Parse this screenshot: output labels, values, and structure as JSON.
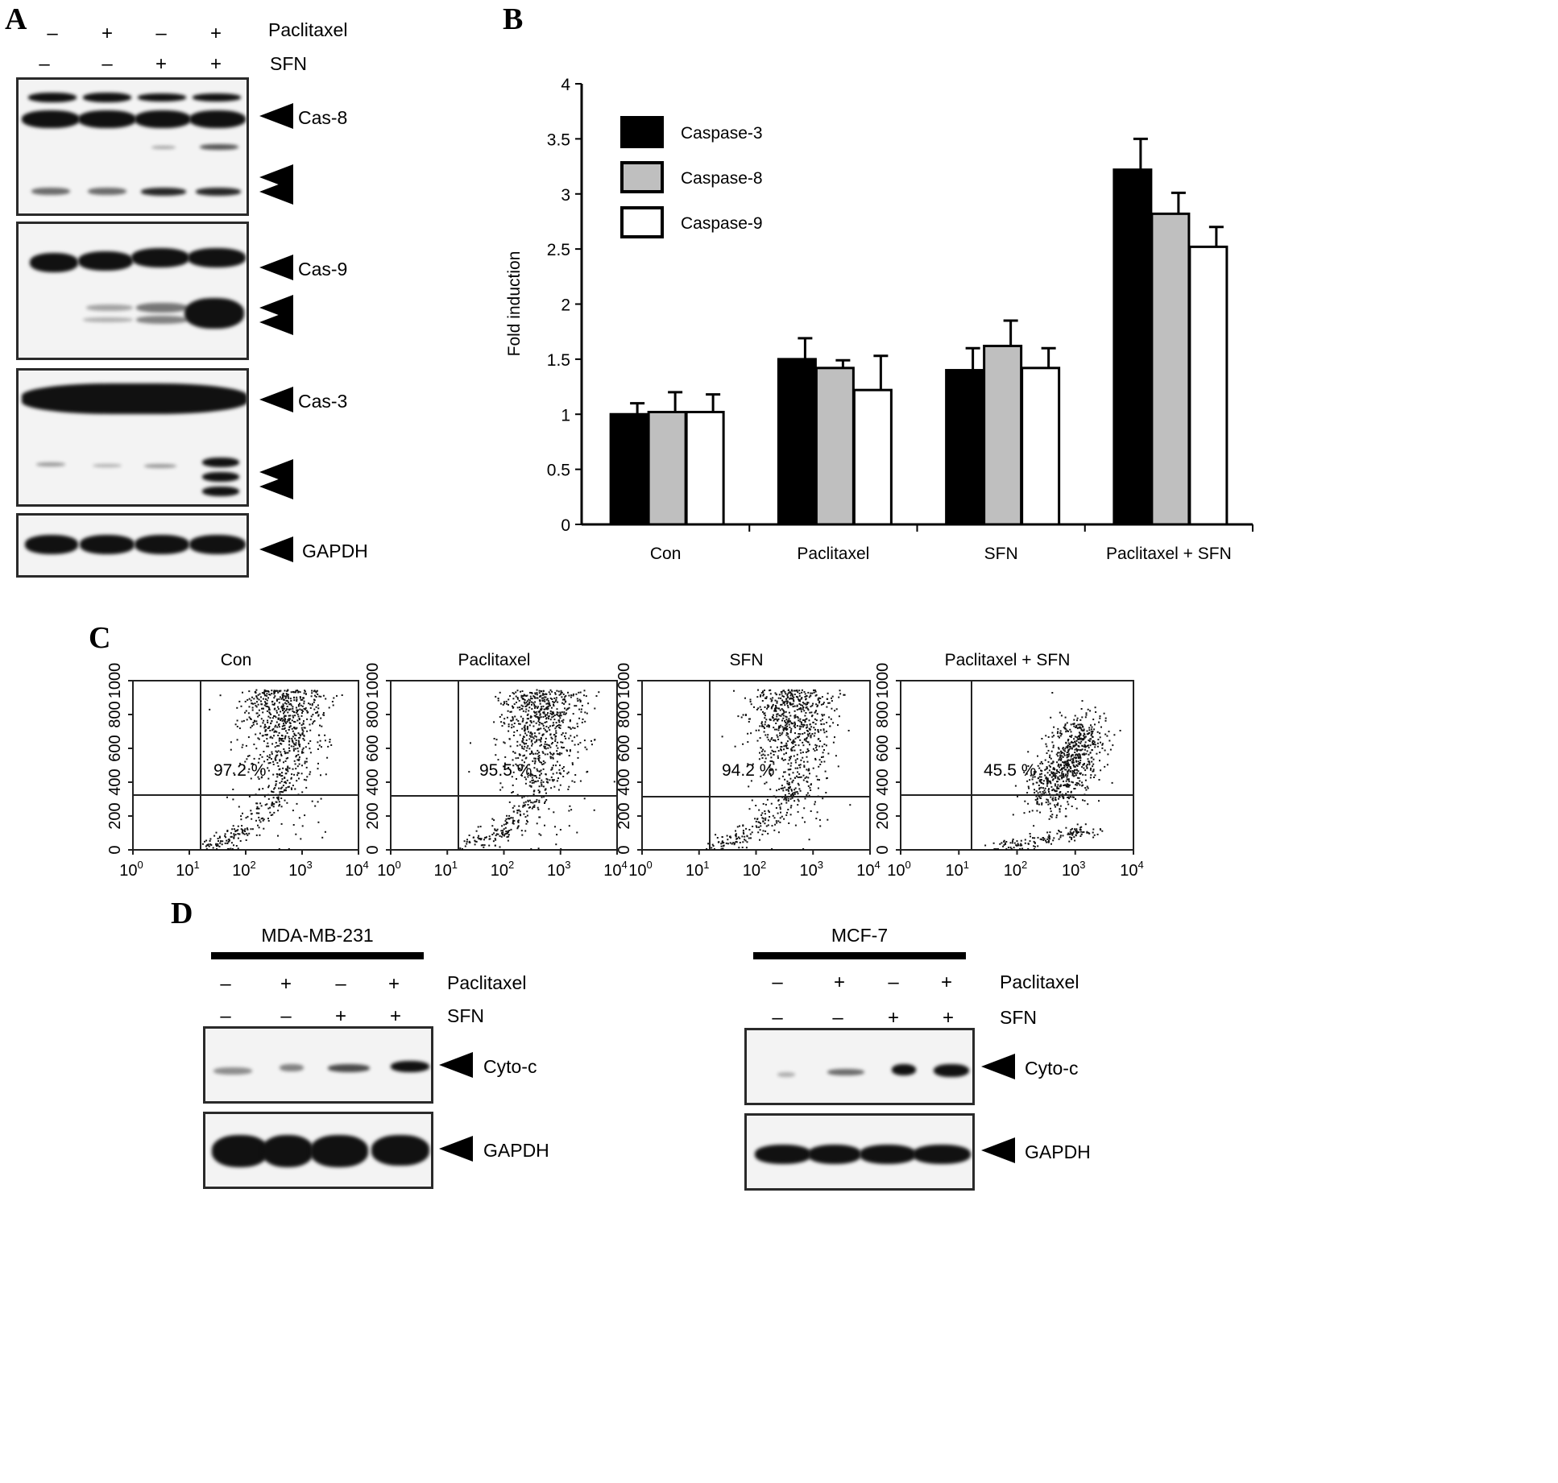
{
  "panel_a": {
    "letter": "A",
    "treatments": [
      {
        "label": "Paclitaxel",
        "signs": [
          "–",
          "+",
          "–",
          "+"
        ]
      },
      {
        "label": "SFN",
        "signs": [
          "–",
          "–",
          "+",
          "+"
        ]
      }
    ],
    "blots": [
      {
        "label": "Cas-8"
      },
      {
        "label": "Cas-9"
      },
      {
        "label": "Cas-3"
      },
      {
        "label": "GAPDH"
      }
    ]
  },
  "chart_data": {
    "type": "bar",
    "panel_letter": "B",
    "title": "",
    "xlabel": "",
    "ylabel": "Fold induction",
    "ylim": [
      0,
      4
    ],
    "yticks": [
      "0",
      "0.5",
      "1",
      "1.5",
      "2",
      "2.5",
      "3",
      "3.5",
      "4"
    ],
    "categories": [
      "Con",
      "Paclitaxel",
      "SFN",
      "Paclitaxel + SFN"
    ],
    "legend_position": "top-left",
    "series": [
      {
        "name": "Caspase-3",
        "color": "#000000",
        "values": [
          1.0,
          1.5,
          1.4,
          3.22
        ],
        "errors": [
          0.1,
          0.19,
          0.2,
          0.28
        ]
      },
      {
        "name": "Caspase-8",
        "color": "#bfbfbf",
        "values": [
          1.02,
          1.42,
          1.62,
          2.82
        ],
        "errors": [
          0.18,
          0.07,
          0.23,
          0.19
        ]
      },
      {
        "name": "Caspase-9",
        "color": "#ffffff",
        "values": [
          1.02,
          1.22,
          1.42,
          2.52
        ],
        "errors": [
          0.16,
          0.31,
          0.18,
          0.18
        ]
      }
    ]
  },
  "panel_c": {
    "letter": "C",
    "plots": [
      {
        "title": "Con",
        "percent": "97.2 %"
      },
      {
        "title": "Paclitaxel",
        "percent": "95.5 %"
      },
      {
        "title": "SFN",
        "percent": "94.2 %"
      },
      {
        "title": "Paclitaxel + SFN",
        "percent": "45.5 %"
      }
    ],
    "y_ticks": [
      "0",
      "200",
      "400",
      "600",
      "800",
      "1000"
    ],
    "x_ticks": [
      "0",
      "1",
      "2",
      "3",
      "4"
    ],
    "x_base": "10"
  },
  "panel_d": {
    "letter": "D",
    "groups": [
      {
        "cell_line": "MDA-MB-231",
        "treatments": [
          {
            "label": "Paclitaxel",
            "signs": [
              "–",
              "+",
              "–",
              "+"
            ]
          },
          {
            "label": "SFN",
            "signs": [
              "–",
              "–",
              "+",
              "+"
            ]
          }
        ],
        "blots": [
          {
            "label": "Cyto-c"
          },
          {
            "label": "GAPDH"
          }
        ]
      },
      {
        "cell_line": "MCF-7",
        "treatments": [
          {
            "label": "Paclitaxel",
            "signs": [
              "–",
              "+",
              "–",
              "+"
            ]
          },
          {
            "label": "SFN",
            "signs": [
              "–",
              "–",
              "+",
              "+"
            ]
          }
        ],
        "blots": [
          {
            "label": "Cyto-c"
          },
          {
            "label": "GAPDH"
          }
        ]
      }
    ]
  }
}
